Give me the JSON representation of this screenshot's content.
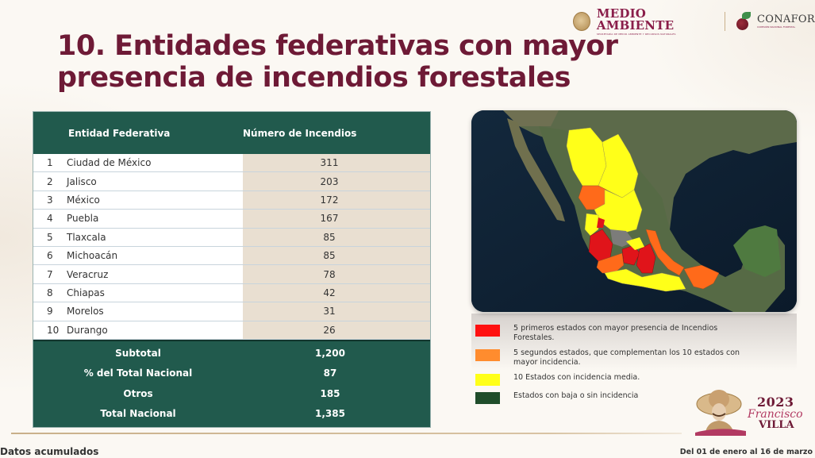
{
  "header": {
    "logo_medio_ambiente": "MEDIO AMBIENTE",
    "logo_medio_ambiente_sub": "SECRETARÍA DE MEDIO AMBIENTE Y RECURSOS NATURALES",
    "logo_conafor": "CONAFOR",
    "logo_conafor_sub": "COMISIÓN NACIONAL FORESTAL"
  },
  "title": {
    "line1": "10. Entidades federativas con mayor",
    "line2": "presencia de incendios forestales"
  },
  "table": {
    "headers": [
      "Entidad Federativa",
      "Número de Incendios"
    ],
    "rows": [
      {
        "rank": "1",
        "entidad": "Ciudad de México",
        "incendios": "311"
      },
      {
        "rank": "2",
        "entidad": "Jalisco",
        "incendios": "203"
      },
      {
        "rank": "3",
        "entidad": "México",
        "incendios": "172"
      },
      {
        "rank": "4",
        "entidad": "Puebla",
        "incendios": "167"
      },
      {
        "rank": "5",
        "entidad": "Tlaxcala",
        "incendios": "85"
      },
      {
        "rank": "6",
        "entidad": "Michoacán",
        "incendios": "85"
      },
      {
        "rank": "7",
        "entidad": "Veracruz",
        "incendios": "78"
      },
      {
        "rank": "8",
        "entidad": "Chiapas",
        "incendios": "42"
      },
      {
        "rank": "9",
        "entidad": "Morelos",
        "incendios": "31"
      },
      {
        "rank": "10",
        "entidad": "Durango",
        "incendios": "26"
      }
    ],
    "summary": [
      {
        "label": "Subtotal",
        "value": "1,200"
      },
      {
        "label": "% del Total Nacional",
        "value": "87"
      },
      {
        "label": "Otros",
        "value": "185"
      },
      {
        "label": "Total Nacional",
        "value": "1,385"
      }
    ]
  },
  "legend": {
    "items": [
      {
        "color": "#ff1010",
        "text": "5 primeros estados con mayor presencia de Incendios Forestales."
      },
      {
        "color": "#ff8c2e",
        "text": "5 segundos estados, que complementan los 10 estados con mayor incidencia."
      },
      {
        "color": "#ffff19",
        "text": "10 Estados con incidencia media."
      },
      {
        "color": "#1f4d2a",
        "text": "Estados con baja o sin incidencia"
      }
    ]
  },
  "villa_logo": {
    "year": "2023",
    "name1": "Francisco",
    "name2": "VILLA"
  },
  "footer": {
    "left": "Datos acumulados",
    "right": "Del 01 de enero al 16 de marzo"
  },
  "colors": {
    "title": "#6e1a36",
    "table_header": "#215a4d",
    "value_column": "#e9dfd1"
  }
}
